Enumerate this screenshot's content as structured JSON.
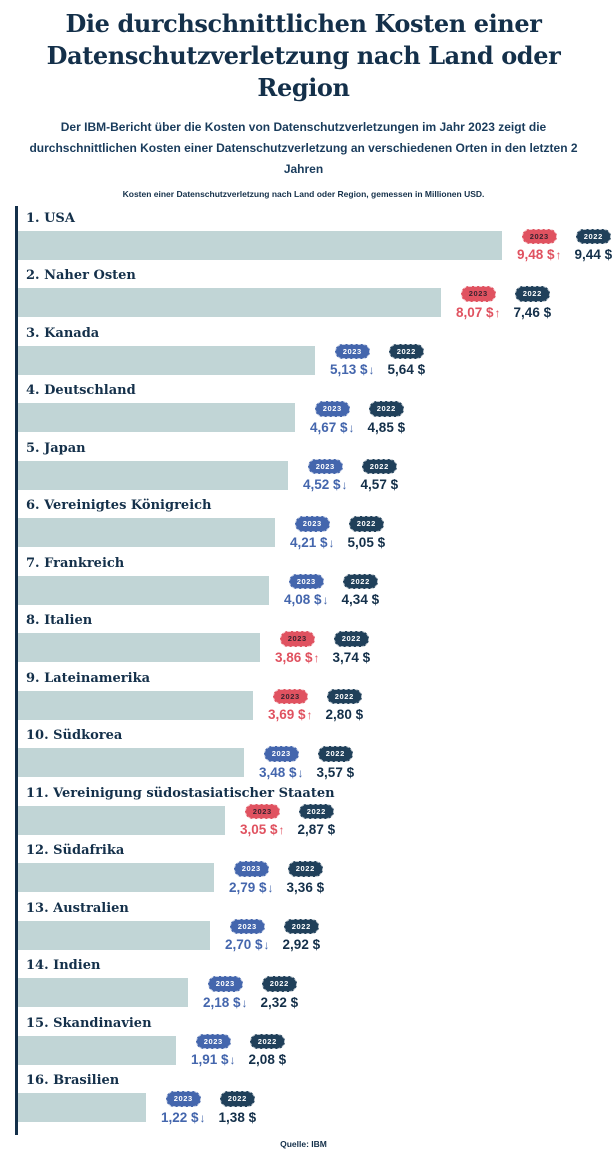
{
  "header": {
    "title_line1": "Die durchschnittlichen Kosten einer",
    "title_line2": "Datenschutzverletzung nach Land oder Region",
    "subtitle": "Der IBM-Bericht über die Kosten von Datenschutzverletzungen im Jahr 2023 zeigt die durchschnittlichen Kosten einer Datenschutzverletzung an verschiedenen Orten in den letzten 2 Jahren",
    "caption": "Kosten einer Datenschutzverletzung nach Land oder Region, gemessen in Millionen USD."
  },
  "footer": {
    "source": "Quelle: IBM"
  },
  "colors": {
    "navy": "#14304a",
    "subnavy": "#1a3c5c",
    "red": "#e05260",
    "blue": "#4466ad",
    "badge_2022": "#20405a",
    "bar": "#c1d5d6"
  },
  "legend": {
    "year_2023": "2023",
    "year_2022": "2022"
  },
  "chart_data": {
    "type": "bar",
    "title": "Die durchschnittlichen Kosten einer Datenschutzverletzung nach Land oder Region",
    "subtitle": "Kosten einer Datenschutzverletzung nach Land oder Region, gemessen in Millionen USD.",
    "unit": "Millionen USD",
    "orientation": "horizontal",
    "xlim": [
      0,
      10
    ],
    "grid": false,
    "legend_position": "right-of-bars",
    "categories": [
      "USA",
      "Naher Osten",
      "Kanada",
      "Deutschland",
      "Japan",
      "Vereinigtes Königreich",
      "Frankreich",
      "Italien",
      "Lateinamerika",
      "Südkorea",
      "Vereinigung südostasiatischer Staaten",
      "Südafrika",
      "Australien",
      "Indien",
      "Skandinavien",
      "Brasilien"
    ],
    "series": [
      {
        "name": "2023",
        "values": [
          9.48,
          8.07,
          5.13,
          4.67,
          4.52,
          4.21,
          4.08,
          3.86,
          3.69,
          3.48,
          3.05,
          2.79,
          2.7,
          2.18,
          1.91,
          1.22
        ]
      },
      {
        "name": "2022",
        "values": [
          9.44,
          7.46,
          5.64,
          4.85,
          4.57,
          5.05,
          4.34,
          3.74,
          2.8,
          3.57,
          2.87,
          3.36,
          2.92,
          2.32,
          2.08,
          1.38
        ]
      }
    ],
    "entries": [
      {
        "rank": "1",
        "country": "USA",
        "y2023": 9.48,
        "y2022": 9.44,
        "trend": "up",
        "label_2023": "9,48 $",
        "label_2022": "9,44 $"
      },
      {
        "rank": "2",
        "country": "Naher Osten",
        "y2023": 8.07,
        "y2022": 7.46,
        "trend": "up",
        "label_2023": "8,07 $",
        "label_2022": "7,46 $"
      },
      {
        "rank": "3",
        "country": "Kanada",
        "y2023": 5.13,
        "y2022": 5.64,
        "trend": "down",
        "label_2023": "5,13 $",
        "label_2022": "5,64 $"
      },
      {
        "rank": "4",
        "country": "Deutschland",
        "y2023": 4.67,
        "y2022": 4.85,
        "trend": "down",
        "label_2023": "4,67 $",
        "label_2022": "4,85 $"
      },
      {
        "rank": "5",
        "country": "Japan",
        "y2023": 4.52,
        "y2022": 4.57,
        "trend": "down",
        "label_2023": "4,52 $",
        "label_2022": "4,57 $"
      },
      {
        "rank": "6",
        "country": "Vereinigtes Königreich",
        "y2023": 4.21,
        "y2022": 5.05,
        "trend": "down",
        "label_2023": "4,21 $",
        "label_2022": "5,05 $"
      },
      {
        "rank": "7",
        "country": "Frankreich",
        "y2023": 4.08,
        "y2022": 4.34,
        "trend": "down",
        "label_2023": "4,08 $",
        "label_2022": "4,34 $"
      },
      {
        "rank": "8",
        "country": "Italien",
        "y2023": 3.86,
        "y2022": 3.74,
        "trend": "up",
        "label_2023": "3,86 $",
        "label_2022": "3,74 $"
      },
      {
        "rank": "9",
        "country": "Lateinamerika",
        "y2023": 3.69,
        "y2022": 2.8,
        "trend": "up",
        "label_2023": "3,69 $",
        "label_2022": "2,80 $"
      },
      {
        "rank": "10",
        "country": "Südkorea",
        "y2023": 3.48,
        "y2022": 3.57,
        "trend": "down",
        "label_2023": "3,48 $",
        "label_2022": "3,57 $"
      },
      {
        "rank": "11",
        "country": "Vereinigung südostasiatischer Staaten",
        "y2023": 3.05,
        "y2022": 2.87,
        "trend": "up",
        "label_2023": "3,05 $",
        "label_2022": "2,87 $"
      },
      {
        "rank": "12",
        "country": "Südafrika",
        "y2023": 2.79,
        "y2022": 3.36,
        "trend": "down",
        "label_2023": "2,79 $",
        "label_2022": "3,36 $"
      },
      {
        "rank": "13",
        "country": "Australien",
        "y2023": 2.7,
        "y2022": 2.92,
        "trend": "down",
        "label_2023": "2,70 $",
        "label_2022": "2,92 $"
      },
      {
        "rank": "14",
        "country": "Indien",
        "y2023": 2.18,
        "y2022": 2.32,
        "trend": "down",
        "label_2023": "2,18 $",
        "label_2022": "2,32 $"
      },
      {
        "rank": "15",
        "country": "Skandinavien",
        "y2023": 1.91,
        "y2022": 2.08,
        "trend": "down",
        "label_2023": "1,91 $",
        "label_2022": "2,08 $"
      },
      {
        "rank": "16",
        "country": "Brasilien",
        "y2023": 1.22,
        "y2022": 1.38,
        "trend": "down",
        "label_2023": "1,22 $",
        "label_2022": "1,38 $"
      }
    ]
  }
}
